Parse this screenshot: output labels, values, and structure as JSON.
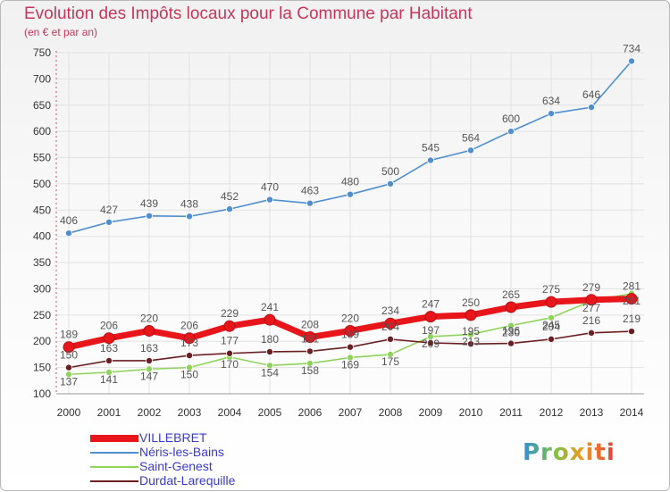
{
  "header": {
    "title": "Evolution des Impôts locaux pour la Commune par Habitant",
    "subtitle": "(en € et par an)"
  },
  "logo_text": "Proxiti",
  "colors": {
    "title": "#c8355b",
    "legend_text": "#3a3ad0"
  },
  "chart_data": {
    "type": "line",
    "title": "Evolution des Impôts locaux pour la Commune par Habitant",
    "subtitle": "(en € et par an)",
    "xlabel": "",
    "ylabel": "",
    "x": [
      "2000",
      "2001",
      "2002",
      "2003",
      "2004",
      "2005",
      "2006",
      "2007",
      "2008",
      "2009",
      "2010",
      "2011",
      "2012",
      "2013",
      "2014"
    ],
    "ylim": [
      100,
      750
    ],
    "yticks": [
      100,
      150,
      200,
      250,
      300,
      350,
      400,
      450,
      500,
      550,
      600,
      650,
      700,
      750
    ],
    "grid": true,
    "legend_position": "bottom-left",
    "series": [
      {
        "name": "VILLEBRET",
        "color": "#e8161b",
        "values": [
          189,
          206,
          220,
          206,
          229,
          241,
          208,
          220,
          234,
          247,
          250,
          265,
          275,
          279,
          281
        ],
        "labels": [
          "189",
          "206",
          "220",
          "206",
          "229",
          "241",
          "208",
          "220",
          "234",
          "247",
          "250",
          "265",
          "275",
          "279",
          "281"
        ]
      },
      {
        "name": "Néris-les-Bains",
        "color": "#4f8fcf",
        "values": [
          406,
          427,
          439,
          438,
          452,
          470,
          463,
          480,
          500,
          545,
          564,
          600,
          634,
          646,
          734
        ],
        "labels": [
          "406",
          "427",
          "439",
          "438",
          "452",
          "470",
          "463",
          "480",
          "500",
          "545",
          "564",
          "600",
          "634",
          "646",
          "734"
        ]
      },
      {
        "name": "Saint-Genest",
        "color": "#8fd45a",
        "values": [
          137,
          141,
          147,
          150,
          170,
          154,
          158,
          169,
          175,
          209,
          213,
          230,
          245,
          277,
          291
        ],
        "labels": [
          "137",
          "141",
          "147",
          "150",
          "170",
          "154",
          "158",
          "169",
          "175",
          "209",
          "213",
          "230",
          "245",
          "277",
          "291"
        ]
      },
      {
        "name": "Durdat-Larequille",
        "color": "#6b1f23",
        "values": [
          150,
          163,
          163,
          173,
          177,
          180,
          181,
          189,
          204,
          197,
          195,
          196,
          204,
          216,
          219
        ],
        "labels": [
          "150",
          "163",
          "163",
          "173",
          "177",
          "180",
          "181",
          "189",
          "204",
          "197",
          "195",
          "196",
          "204",
          "216",
          "219"
        ]
      }
    ]
  }
}
